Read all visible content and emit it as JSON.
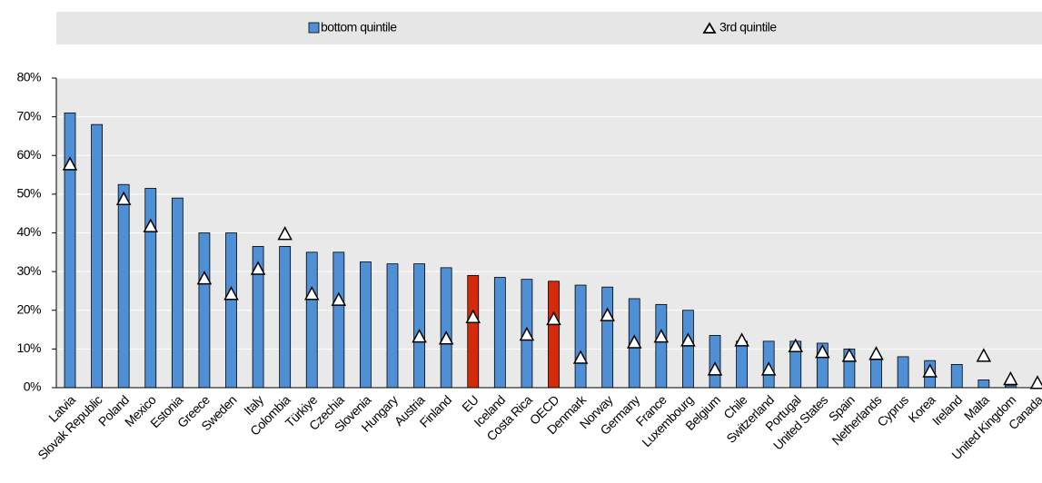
{
  "chart_data": {
    "type": "bar",
    "categories": [
      "Latvia",
      "Slovak Republic",
      "Poland",
      "Mexico",
      "Estonia",
      "Greece",
      "Sweden",
      "Italy",
      "Colombia",
      "Türkiye",
      "Czechia",
      "Slovenia",
      "Hungary",
      "Austria",
      "Finland",
      "EU",
      "Iceland",
      "Costa Rica",
      "OECD",
      "Denmark",
      "Norway",
      "Germany",
      "France",
      "Luxembourg",
      "Belgium",
      "Chile",
      "Switzerland",
      "Portugal",
      "United States",
      "Spain",
      "Netherlands",
      "Cyprus",
      "Korea",
      "Ireland",
      "Malta",
      "United Kingdom",
      "Canada"
    ],
    "series": [
      {
        "name": "bottom quintile",
        "color": "#4f8fd6",
        "colors": [
          "#4f8fd6",
          "#4f8fd6",
          "#4f8fd6",
          "#4f8fd6",
          "#4f8fd6",
          "#4f8fd6",
          "#4f8fd6",
          "#4f8fd6",
          "#4f8fd6",
          "#4f8fd6",
          "#4f8fd6",
          "#4f8fd6",
          "#4f8fd6",
          "#4f8fd6",
          "#4f8fd6",
          "#d42a0a",
          "#4f8fd6",
          "#4f8fd6",
          "#d42a0a",
          "#4f8fd6",
          "#4f8fd6",
          "#4f8fd6",
          "#4f8fd6",
          "#4f8fd6",
          "#4f8fd6",
          "#4f8fd6",
          "#4f8fd6",
          "#4f8fd6",
          "#4f8fd6",
          "#4f8fd6",
          "#4f8fd6",
          "#4f8fd6",
          "#4f8fd6",
          "#4f8fd6",
          "#4f8fd6",
          "#4f8fd6",
          "#4f8fd6"
        ],
        "values": [
          71,
          68,
          52.5,
          51.5,
          49,
          40,
          40,
          36.5,
          36.5,
          35,
          35,
          32.5,
          32,
          32,
          31,
          29,
          28.5,
          28,
          27.5,
          26.5,
          26,
          23,
          21.5,
          20,
          13.5,
          12,
          12,
          12,
          11.5,
          10,
          8,
          8,
          7,
          6,
          2,
          0.5,
          0
        ]
      },
      {
        "name": "3rd quintile",
        "color": "#ffffff",
        "marker": "triangle",
        "values": [
          57.5,
          null,
          48.5,
          41.5,
          null,
          28,
          24,
          30.5,
          39.5,
          24,
          22.5,
          null,
          null,
          13,
          12.5,
          18,
          null,
          13.5,
          17.5,
          7.5,
          18.5,
          11.5,
          13,
          12,
          4.5,
          12,
          4.5,
          10.5,
          9,
          8,
          8.5,
          null,
          4,
          null,
          8,
          2,
          1
        ]
      }
    ],
    "ylim": [
      0,
      80
    ],
    "yticks": [
      {
        "value": 0,
        "label": "0%"
      },
      {
        "value": 10,
        "label": "10%"
      },
      {
        "value": 20,
        "label": "20%"
      },
      {
        "value": 30,
        "label": "30%"
      },
      {
        "value": 40,
        "label": "40%"
      },
      {
        "value": 50,
        "label": "50%"
      },
      {
        "value": 60,
        "label": "60%"
      },
      {
        "value": 70,
        "label": "70%"
      },
      {
        "value": 80,
        "label": "80%"
      }
    ],
    "grid": true
  }
}
